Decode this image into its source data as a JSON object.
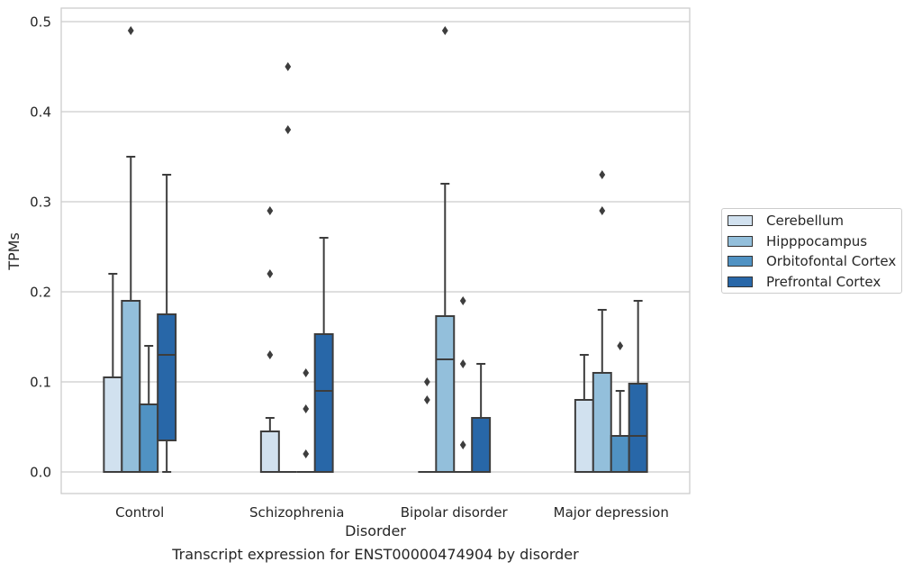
{
  "caption": "Transcript expression for ENST00000474904 by disorder",
  "chart_data": {
    "type": "box",
    "xlabel": "Disorder",
    "ylabel": "TPMs",
    "ylim": [
      -0.024,
      0.515
    ],
    "yticks": [
      "0.0",
      "0.1",
      "0.2",
      "0.3",
      "0.4",
      "0.5"
    ],
    "grid": "horizontal",
    "legend_position": "right",
    "categories": [
      "Control",
      "Schizophrenia",
      "Bipolar disorder",
      "Major depression"
    ],
    "series": [
      {
        "name": "Cerebellum",
        "color": "#d1e1ef",
        "boxes": [
          {
            "q1": 0.0,
            "median": 0.0,
            "q3": 0.105,
            "whisker_low": 0.0,
            "whisker_high": 0.22,
            "outliers": []
          },
          {
            "q1": 0.0,
            "median": 0.0,
            "q3": 0.045,
            "whisker_low": 0.0,
            "whisker_high": 0.06,
            "outliers": [
              0.13,
              0.22,
              0.29
            ]
          },
          {
            "q1": 0.0,
            "median": 0.0,
            "q3": 0.0,
            "whisker_low": 0.0,
            "whisker_high": 0.0,
            "outliers": [
              0.08,
              0.1
            ]
          },
          {
            "q1": 0.0,
            "median": 0.0,
            "q3": 0.08,
            "whisker_low": 0.0,
            "whisker_high": 0.13,
            "outliers": []
          }
        ]
      },
      {
        "name": "Hipppocampus",
        "color": "#93bfdb",
        "boxes": [
          {
            "q1": 0.0,
            "median": 0.0,
            "q3": 0.19,
            "whisker_low": 0.0,
            "whisker_high": 0.35,
            "outliers": [
              0.49
            ]
          },
          {
            "q1": 0.0,
            "median": 0.0,
            "q3": 0.0,
            "whisker_low": 0.0,
            "whisker_high": 0.0,
            "outliers": [
              0.38,
              0.45
            ]
          },
          {
            "q1": 0.0,
            "median": 0.125,
            "q3": 0.173,
            "whisker_low": 0.0,
            "whisker_high": 0.32,
            "outliers": [
              0.49
            ]
          },
          {
            "q1": 0.0,
            "median": 0.0,
            "q3": 0.11,
            "whisker_low": 0.0,
            "whisker_high": 0.18,
            "outliers": [
              0.29,
              0.33
            ]
          }
        ]
      },
      {
        "name": "Orbitofontal Cortex",
        "color": "#5092c3",
        "boxes": [
          {
            "q1": 0.0,
            "median": 0.0,
            "q3": 0.075,
            "whisker_low": 0.0,
            "whisker_high": 0.14,
            "outliers": []
          },
          {
            "q1": 0.0,
            "median": 0.0,
            "q3": 0.0,
            "whisker_low": 0.0,
            "whisker_high": 0.0,
            "outliers": [
              0.02,
              0.07,
              0.11
            ]
          },
          {
            "q1": 0.0,
            "median": 0.0,
            "q3": 0.0,
            "whisker_low": 0.0,
            "whisker_high": 0.0,
            "outliers": [
              0.03,
              0.12,
              0.19
            ]
          },
          {
            "q1": 0.0,
            "median": 0.0,
            "q3": 0.04,
            "whisker_low": 0.0,
            "whisker_high": 0.09,
            "outliers": [
              0.14
            ]
          }
        ]
      },
      {
        "name": "Prefrontal Cortex",
        "color": "#2867a8",
        "boxes": [
          {
            "q1": 0.035,
            "median": 0.13,
            "q3": 0.175,
            "whisker_low": 0.0,
            "whisker_high": 0.33,
            "outliers": []
          },
          {
            "q1": 0.0,
            "median": 0.09,
            "q3": 0.153,
            "whisker_low": 0.0,
            "whisker_high": 0.26,
            "outliers": []
          },
          {
            "q1": 0.0,
            "median": 0.0,
            "q3": 0.06,
            "whisker_low": 0.0,
            "whisker_high": 0.12,
            "outliers": []
          },
          {
            "q1": 0.0,
            "median": 0.04,
            "q3": 0.098,
            "whisker_low": 0.0,
            "whisker_high": 0.19,
            "outliers": []
          }
        ]
      }
    ]
  }
}
